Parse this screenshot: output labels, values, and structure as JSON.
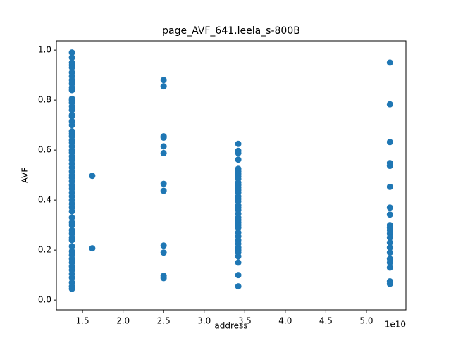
{
  "chart_data": {
    "type": "scatter",
    "title": "page_AVF_641.leela_s-800B",
    "x_label": "address",
    "y_label": "AVF",
    "x_offset_label": "1e10",
    "color": "#1f77b4",
    "x": [
      1.37,
      1.37,
      1.37,
      1.37,
      1.37,
      1.37,
      1.37,
      1.37,
      1.37,
      1.37,
      1.37,
      1.37,
      1.37,
      1.37,
      1.37,
      1.37,
      1.37,
      1.37,
      1.37,
      1.37,
      1.37,
      1.37,
      1.37,
      1.37,
      1.37,
      1.37,
      1.37,
      1.37,
      1.37,
      1.37,
      1.37,
      1.37,
      1.37,
      1.37,
      1.37,
      1.37,
      1.37,
      1.37,
      1.37,
      1.37,
      1.37,
      1.37,
      1.37,
      1.37,
      1.37,
      1.37,
      1.37,
      1.37,
      1.37,
      1.37,
      1.37,
      1.37,
      1.37,
      1.37,
      1.37,
      1.37,
      1.37,
      1.37,
      1.37,
      1.37,
      1.37,
      1.37,
      1.37,
      1.62,
      1.62,
      2.5,
      2.5,
      2.5,
      2.5,
      2.5,
      2.5,
      2.5,
      2.5,
      2.5,
      2.5,
      2.5,
      2.5,
      3.42,
      3.42,
      3.42,
      3.42,
      3.42,
      3.42,
      3.42,
      3.42,
      3.42,
      3.42,
      3.42,
      3.42,
      3.42,
      3.42,
      3.42,
      3.42,
      3.42,
      3.42,
      3.42,
      3.42,
      3.42,
      3.42,
      3.42,
      3.42,
      3.42,
      3.42,
      3.42,
      3.42,
      3.42,
      3.42,
      3.42,
      3.42,
      3.42,
      3.42,
      3.42,
      3.42,
      3.42,
      5.29,
      5.29,
      5.29,
      5.29,
      5.29,
      5.29,
      5.29,
      5.29,
      5.29,
      5.29,
      5.29,
      5.29,
      5.29,
      5.29,
      5.29,
      5.29,
      5.29,
      5.29,
      5.29,
      5.29,
      5.29
    ],
    "values": [
      0.99,
      0.97,
      0.95,
      0.94,
      0.93,
      0.91,
      0.895,
      0.88,
      0.865,
      0.85,
      0.84,
      0.805,
      0.8,
      0.79,
      0.775,
      0.76,
      0.74,
      0.735,
      0.715,
      0.7,
      0.675,
      0.665,
      0.655,
      0.64,
      0.63,
      0.615,
      0.6,
      0.59,
      0.575,
      0.56,
      0.545,
      0.53,
      0.515,
      0.5,
      0.49,
      0.475,
      0.46,
      0.445,
      0.43,
      0.415,
      0.4,
      0.385,
      0.37,
      0.355,
      0.33,
      0.31,
      0.3,
      0.28,
      0.265,
      0.25,
      0.24,
      0.215,
      0.195,
      0.18,
      0.165,
      0.15,
      0.135,
      0.12,
      0.105,
      0.09,
      0.07,
      0.055,
      0.045,
      0.497,
      0.207,
      0.88,
      0.855,
      0.655,
      0.65,
      0.615,
      0.588,
      0.465,
      0.437,
      0.218,
      0.19,
      0.097,
      0.088,
      0.625,
      0.597,
      0.588,
      0.562,
      0.525,
      0.515,
      0.505,
      0.495,
      0.485,
      0.47,
      0.46,
      0.45,
      0.44,
      0.43,
      0.415,
      0.405,
      0.395,
      0.38,
      0.37,
      0.36,
      0.345,
      0.33,
      0.32,
      0.31,
      0.3,
      0.29,
      0.27,
      0.255,
      0.24,
      0.225,
      0.21,
      0.2,
      0.19,
      0.175,
      0.15,
      0.1,
      0.055,
      0.95,
      0.783,
      0.632,
      0.548,
      0.537,
      0.453,
      0.37,
      0.342,
      0.3,
      0.29,
      0.28,
      0.265,
      0.25,
      0.23,
      0.21,
      0.19,
      0.165,
      0.15,
      0.13,
      0.075,
      0.065
    ],
    "xlim": [
      1.178,
      5.487
    ],
    "ylim": [
      -0.039,
      1.037
    ],
    "xticks": [
      1.5,
      {
        "value": 2,
        "label": "2.0"
      },
      2.5,
      {
        "value": 3,
        "label": "3.0"
      },
      3.5,
      {
        "value": 4,
        "label": "4.0"
      },
      4.5,
      {
        "value": 5,
        "label": "5.0"
      }
    ],
    "yticks": [
      {
        "value": 0,
        "label": "0.0"
      },
      0.2,
      0.4,
      0.6,
      0.8,
      {
        "value": 1,
        "label": "1.0"
      }
    ],
    "grid": false
  }
}
